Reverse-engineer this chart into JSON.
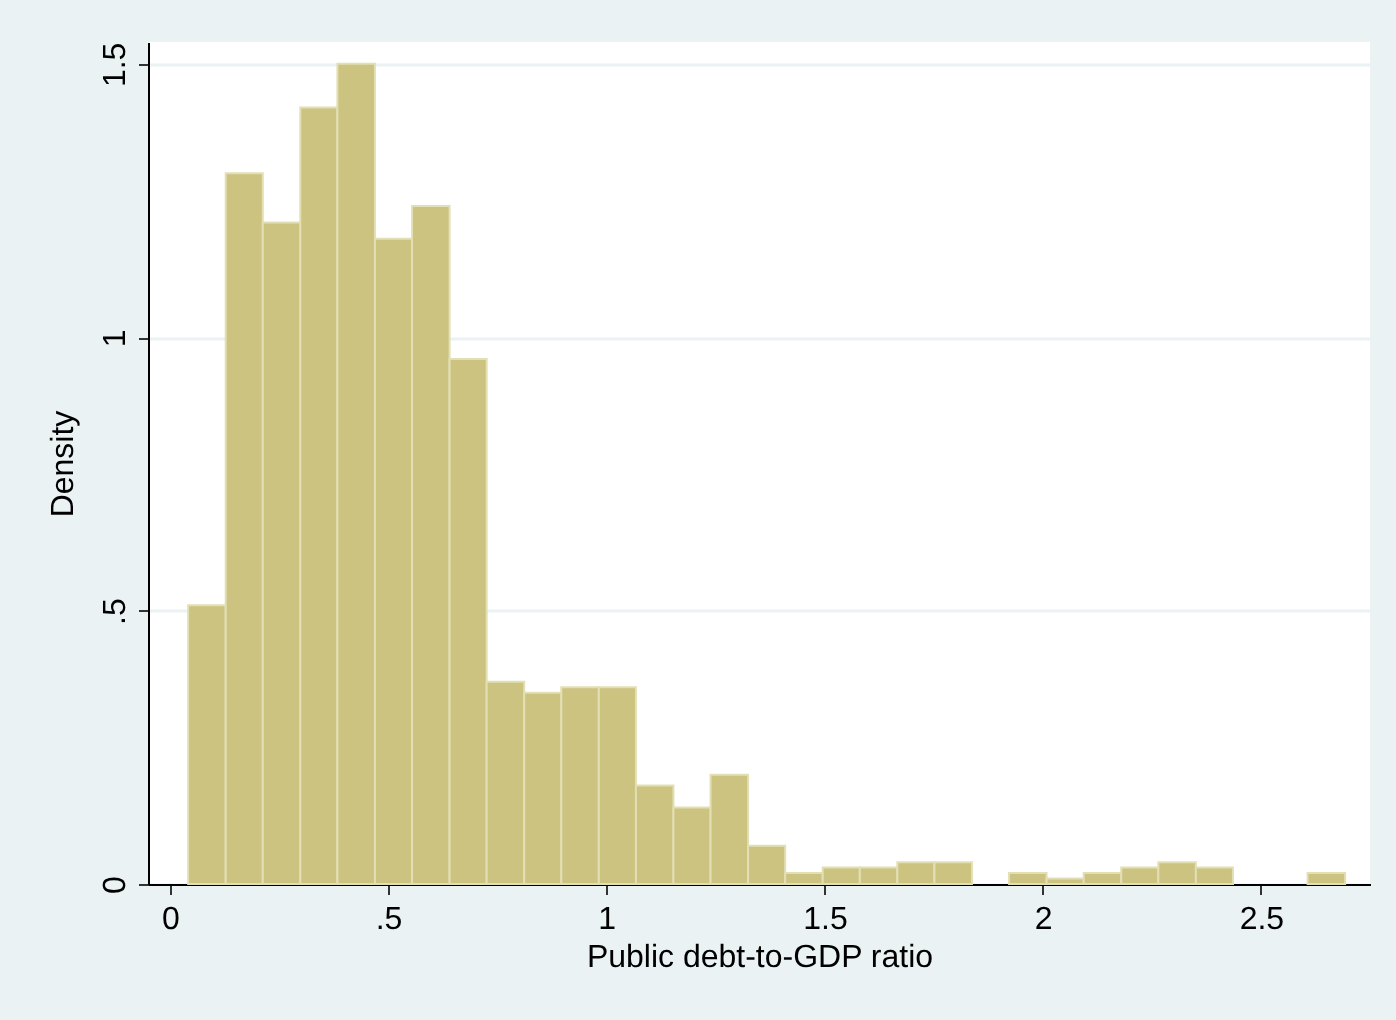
{
  "chart_data": {
    "type": "histogram",
    "xlabel": "Public debt-to-GDP ratio",
    "ylabel": "Density",
    "color": "#cbc37f",
    "bins": [
      0.042,
      0.128,
      0.213,
      0.299,
      0.384,
      0.47,
      0.555,
      0.641,
      0.726,
      0.812,
      0.897,
      0.983,
      1.068,
      1.154,
      1.239,
      1.325,
      1.41,
      1.496,
      1.581,
      1.667,
      1.752,
      1.838,
      1.923,
      2.009,
      2.094,
      2.18,
      2.265,
      2.351,
      2.436,
      2.522,
      2.607,
      2.693
    ],
    "values": [
      0.51,
      1.3,
      1.21,
      1.42,
      1.5,
      1.18,
      1.24,
      0.96,
      0.37,
      0.35,
      0.36,
      0.36,
      0.18,
      0.14,
      0.2,
      0.07,
      0.02,
      0.03,
      0.03,
      0.04,
      0.04,
      0,
      0.02,
      0.01,
      0.02,
      0.03,
      0.04,
      0.03,
      0,
      0,
      0.02
    ],
    "xlim": [
      -0.05,
      2.75
    ],
    "ylim": [
      0,
      1.54
    ],
    "xticks": [
      0,
      {
        "value": 0.5,
        "label": ".5"
      },
      1,
      1.5,
      2,
      2.5
    ],
    "yticks": [
      0,
      {
        "value": 0.5,
        "label": ".5"
      },
      1,
      1.5
    ],
    "grid": "y"
  }
}
